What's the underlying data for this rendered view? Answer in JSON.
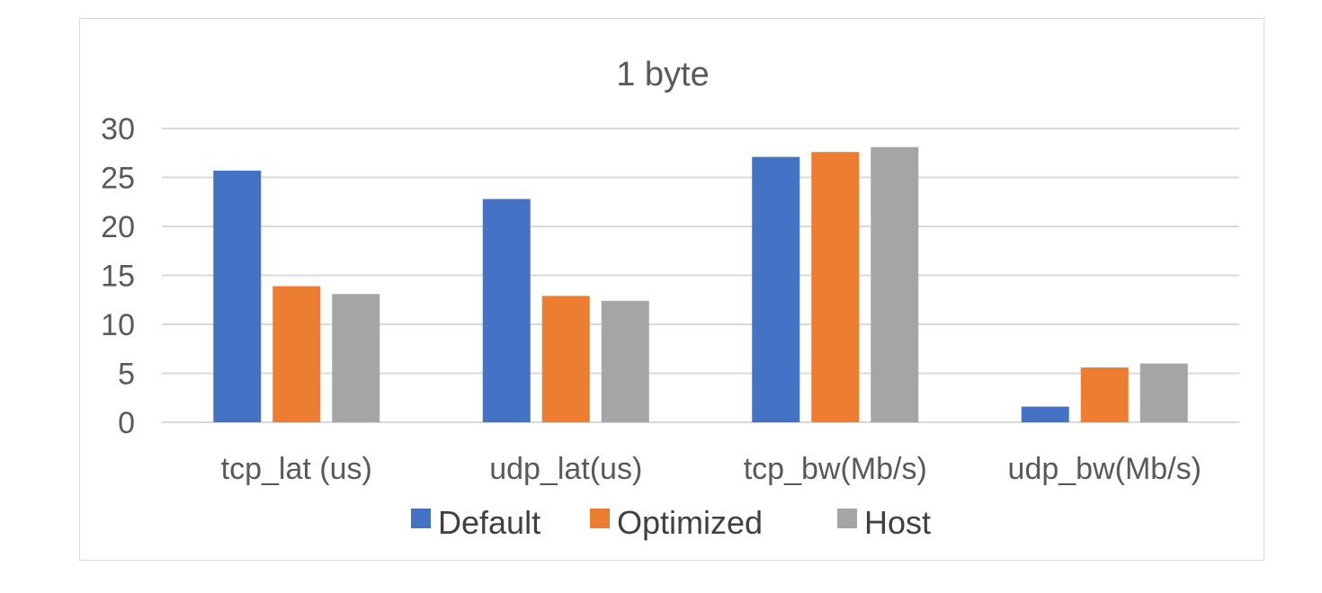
{
  "chart_data": {
    "type": "bar",
    "title": "1 byte",
    "categories": [
      "tcp_lat (us)",
      "udp_lat(us)",
      "tcp_bw(Mb/s)",
      "udp_bw(Mb/s)"
    ],
    "series": [
      {
        "name": "Default",
        "color": "#4472C4",
        "values": [
          25.7,
          22.8,
          27.1,
          1.6
        ]
      },
      {
        "name": "Optimized",
        "color": "#ED7D31",
        "values": [
          13.9,
          12.9,
          27.6,
          5.6
        ]
      },
      {
        "name": "Host",
        "color": "#A5A5A5",
        "values": [
          13.1,
          12.4,
          28.1,
          6.0
        ]
      }
    ],
    "ylim": [
      0,
      30
    ],
    "yticks": [
      "0",
      "5",
      "10",
      "15",
      "20",
      "25",
      "30"
    ],
    "grid": true,
    "legend_position": "bottom"
  }
}
